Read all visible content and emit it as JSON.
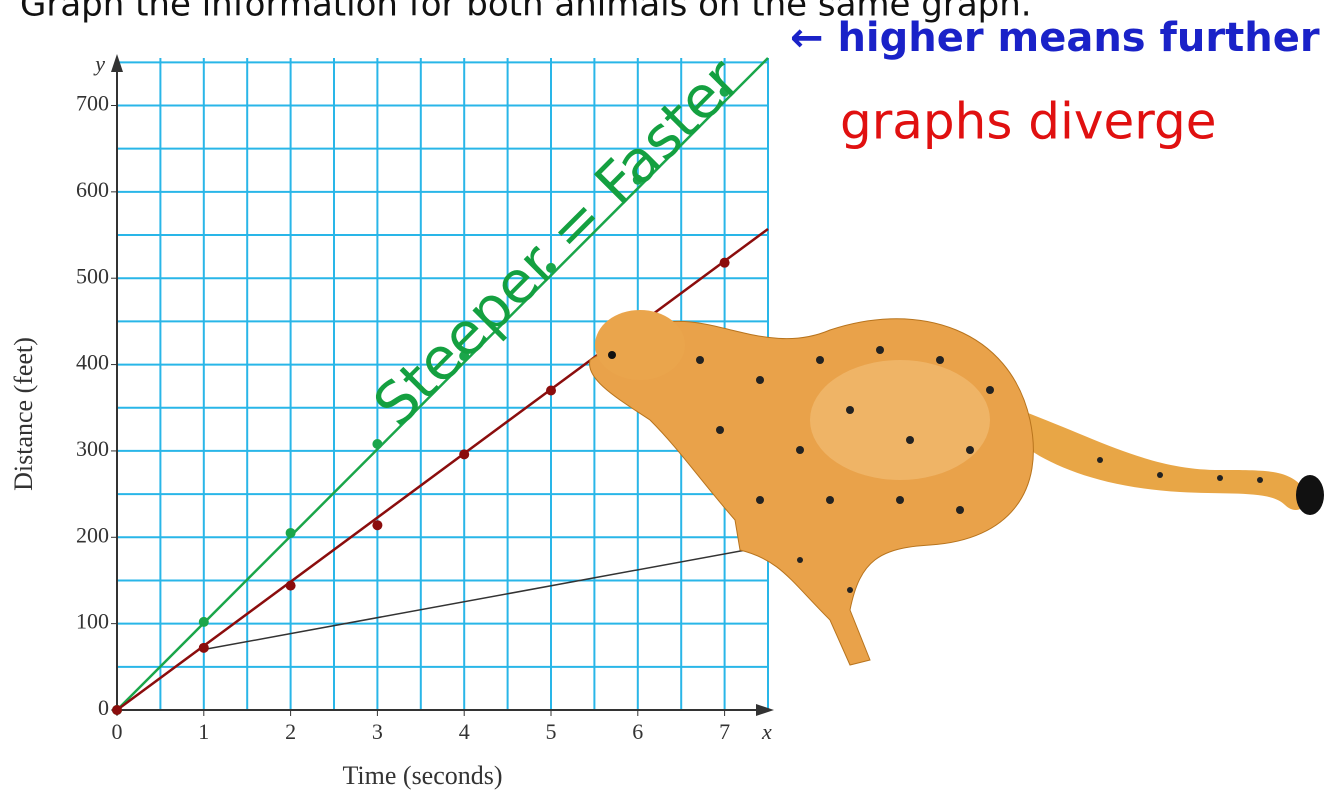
{
  "header": {
    "title": "Graph the information for both animals on the same graph."
  },
  "annotations": {
    "higher": "← higher means further",
    "diverge": "graphs diverge",
    "steeper": "Steeper = Faster"
  },
  "chart_data": {
    "type": "line",
    "xlabel": "Time (seconds)",
    "ylabel": "Distance (feet)",
    "x_axis_letter": "x",
    "y_axis_letter": "y",
    "xlim": [
      0,
      7.5
    ],
    "ylim": [
      0,
      755
    ],
    "xticks": [
      0,
      1,
      2,
      3,
      4,
      5,
      6,
      7
    ],
    "yticks": [
      0,
      100,
      200,
      300,
      400,
      500,
      600,
      700
    ],
    "xgrid": [
      0,
      0.5,
      1,
      1.5,
      2,
      2.5,
      3,
      3.5,
      4,
      4.5,
      5,
      5.5,
      6,
      6.5,
      7,
      7.5
    ],
    "ygrid": [
      0,
      50,
      100,
      150,
      200,
      250,
      300,
      350,
      400,
      450,
      500,
      550,
      600,
      650,
      700,
      750
    ],
    "grid_color": "#29b6e8",
    "series": [
      {
        "color": "#1aa64a",
        "x": [
          0,
          1,
          2,
          3,
          4,
          5,
          6,
          7
        ],
        "values": [
          0,
          102,
          205,
          308,
          410,
          512,
          614,
          716
        ]
      },
      {
        "color": "#8b0d0d",
        "x": [
          0,
          1,
          2,
          3,
          4,
          5,
          6,
          7
        ],
        "values": [
          0,
          72,
          144,
          214,
          296,
          370,
          434,
          518
        ]
      }
    ],
    "lines": [
      {
        "color": "#1aa64a",
        "x": [
          0,
          7.5
        ],
        "values": [
          0,
          755
        ]
      },
      {
        "color": "#8b0d0d",
        "x": [
          0,
          7.5
        ],
        "values": [
          0,
          557
        ]
      },
      {
        "color": "#333333",
        "x": [
          1,
          7.5
        ],
        "values": [
          70,
          190
        ]
      }
    ]
  }
}
